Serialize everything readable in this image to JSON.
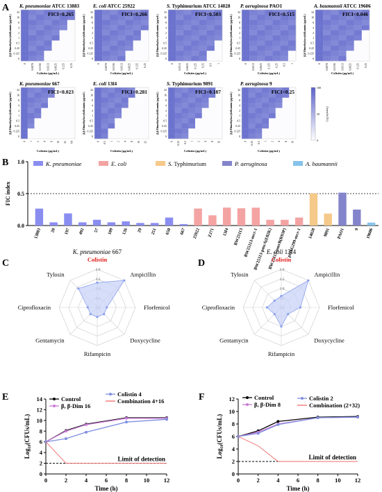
{
  "panel_letters": {
    "A": "A",
    "B": "B",
    "C": "C",
    "D": "D",
    "E": "E",
    "F": "F"
  },
  "colors": {
    "heat_high": "#5b63c9",
    "heat_low": "#ffffff",
    "kp": "#8a8df0",
    "ec": "#f4a3a3",
    "st": "#f5c98a",
    "pa": "#8484cc",
    "ab": "#86c3ea",
    "radar_fill": "#c9d3f7",
    "radar_line": "#8aa0ee",
    "control": "#000000",
    "bbdim": "#c97ad6",
    "colistin": "#7f8fe0",
    "combo": "#f06a6a",
    "colistin_label": "#e01b1b"
  },
  "chart_data": [
    {
      "type": "heatmap",
      "panel": "A",
      "grid": "row1",
      "heatmaps": [
        {
          "name_italic": "K. pneumoniae",
          "name_rest": " ATCC 13883",
          "fici": "FICI<0.265",
          "xticks": [
            "0",
            "0.0078",
            "0.0156",
            "0.0313",
            "0.0625",
            "0.125",
            "0.25"
          ],
          "yticks": [
            "0",
            "0.125",
            "0.25",
            "0.5",
            "1",
            "2",
            "4",
            "8",
            "16",
            "32"
          ],
          "xlabel": "Colistin (μg/mL)",
          "ylabel": "β,β-Dimethylacrylalkannin (μg/mL)",
          "mic_col": 3
        },
        {
          "name_italic": "E. coli",
          "name_rest": " ATCC 25922",
          "fici": "FICI<0.266",
          "xticks": [
            "0",
            "0.0078",
            "0.0156",
            "0.0313",
            "0.0625",
            "0.125",
            "0.25"
          ],
          "yticks": [
            "0",
            "0.125",
            "0.25",
            "0.5",
            "1",
            "2",
            "4",
            "8",
            "16",
            "32"
          ],
          "xlabel": "Colistin (μg/mL)",
          "ylabel": "β,β-Dimethylacrylalkannin (μg/mL)",
          "mic_col": 4
        },
        {
          "name_italic": "S.",
          "name_rest": " Typhimurium ATCC 14028",
          "fici": "FICI<0.503",
          "xticks": [
            "0",
            "0.0313",
            "0.0625",
            "0.125",
            "0.25",
            "0.5",
            "1"
          ],
          "yticks": [
            "0",
            "0.125",
            "0.25",
            "0.5",
            "1",
            "2",
            "4",
            "8",
            "16",
            "32"
          ],
          "xlabel": "Colistin (μg/mL)",
          "ylabel": "β,β-Dimethylacrylalkannin (μg/mL)",
          "mic_col": 5
        },
        {
          "name_italic": "P. aeruginosa",
          "name_rest": " PAO1",
          "fici": "FICI<0.515",
          "xticks": [
            "0",
            "0.0313",
            "0.0625",
            "0.125",
            "0.25",
            "0.5",
            "1"
          ],
          "yticks": [
            "0",
            "0.125",
            "0.25",
            "0.5",
            "1",
            "2",
            "4",
            "8",
            "16",
            "32"
          ],
          "xlabel": "Colistin (μg/mL)",
          "ylabel": "β,β-Dimethylacrylalkannin (μg/mL)",
          "mic_col": 6
        },
        {
          "name_italic": "A. baumannii",
          "name_rest": " ATCC 19606",
          "fici": "FICI<0.046",
          "xticks": [
            "0",
            "0.0078",
            "0.0156",
            "0.0313",
            "0.0625",
            "0.125",
            "0.25"
          ],
          "yticks": [
            "0",
            "0.125",
            "0.25",
            "0.5",
            "1",
            "2",
            "4",
            "8",
            "16",
            "32"
          ],
          "xlabel": "Colistin (μg/mL)",
          "ylabel": "β,β-Dimethylacrylalkannin (μg/mL)",
          "mic_col": 4
        }
      ]
    },
    {
      "type": "heatmap",
      "panel": "A",
      "grid": "row2",
      "heatmaps": [
        {
          "name_italic": "K. pneumoniae",
          "name_rest": " 667",
          "fici": "FICI<0.023",
          "xticks": [
            "0",
            "1",
            "2",
            "4",
            "8",
            "16",
            "32",
            "64"
          ],
          "yticks": [
            "0",
            "0.125",
            "0.25",
            "0.5",
            "1",
            "2",
            "4",
            "8",
            "16",
            "32"
          ],
          "xlabel": "Colistin (μg/mL)",
          "ylabel": "β,β-Dimethylacrylalkannin (μg/mL)",
          "mic_col": 1
        },
        {
          "name_italic": "E. coli",
          "name_rest": " 13f4",
          "fici": "FICI<0.281",
          "xticks": [
            "0",
            "0.5",
            "1",
            "2",
            "4",
            "8",
            "16",
            "32"
          ],
          "yticks": [
            "0",
            "0.125",
            "0.25",
            "0.5",
            "1",
            "2",
            "4",
            "8",
            "16",
            "32"
          ],
          "xlabel": "Colistin (μg/mL)",
          "ylabel": "β,β-Dimethylacrylalkannin (μg/mL)",
          "mic_col": 2
        },
        {
          "name_italic": "S.",
          "name_rest": " Typhimurium 9891",
          "fici": "FICI<0.187",
          "xticks": [
            "0",
            "0.25",
            "0.5",
            "1",
            "2",
            "4",
            "8",
            "16"
          ],
          "yticks": [
            "0",
            "0.125",
            "0.25",
            "0.5",
            "1",
            "2",
            "4",
            "8",
            "16",
            "32"
          ],
          "xlabel": "Colistin (μg/mL)",
          "ylabel": "β,β-Dimethylacrylalkannin (μg/mL)",
          "mic_col": 3
        },
        {
          "name_italic": "P. aeruginosa",
          "name_rest": " 9",
          "fici": "FICI<0.25",
          "xticks": [
            "0",
            "0.25",
            "0.5",
            "1",
            "2",
            "4",
            "8",
            "16"
          ],
          "yticks": [
            "0",
            "0.125",
            "0.25",
            "0.5",
            "1",
            "2",
            "4",
            "8",
            "16",
            "32"
          ],
          "xlabel": "Colistin (μg/mL)",
          "ylabel": "β,β-Dimethylacrylalkannin (μg/mL)",
          "mic_col": 3
        }
      ],
      "colorbar": {
        "ticks": [
          "100",
          "50",
          "0"
        ],
        "label": "Growth (%)"
      }
    },
    {
      "type": "bar",
      "panel": "B",
      "ylabel": "FIC index",
      "ylim": [
        0,
        1.0
      ],
      "yticks": [
        "0.0",
        "0.5",
        "1.0"
      ],
      "threshold": 0.5,
      "legend": [
        {
          "label": "K. pneumoniae",
          "group": "kp",
          "italic": true
        },
        {
          "label": "E. coli",
          "group": "ec",
          "italic": true
        },
        {
          "label": "S. Typhimurium",
          "group": "st",
          "italic_prefix": "S."
        },
        {
          "label": "P. aeruginosa",
          "group": "pa",
          "italic": true
        },
        {
          "label": "A. baumannii",
          "group": "ab",
          "italic": true
        }
      ],
      "categories": [
        "13883",
        "20",
        "197",
        "492",
        "57",
        "109",
        "126",
        "29",
        "251",
        "650",
        "667",
        "25922",
        "ZJ71",
        "13f4",
        "BW25113",
        "BW25113-mcr-1",
        "BW25113-pmrA(E82K)",
        "BW25113-pmrB(R93P)",
        "pHSG299-mcr-1",
        "14028",
        "9891",
        "PAO1",
        "9",
        "19606"
      ],
      "groups": [
        "kp",
        "kp",
        "kp",
        "kp",
        "kp",
        "kp",
        "kp",
        "kp",
        "kp",
        "kp",
        "kp",
        "ec",
        "ec",
        "ec",
        "ec",
        "ec",
        "ec",
        "ec",
        "ec",
        "st",
        "st",
        "pa",
        "pa",
        "ab"
      ],
      "values": [
        0.265,
        0.05,
        0.19,
        0.05,
        0.09,
        0.05,
        0.065,
        0.04,
        0.04,
        0.125,
        0.023,
        0.266,
        0.16,
        0.281,
        0.27,
        0.28,
        0.09,
        0.09,
        0.125,
        0.503,
        0.187,
        0.515,
        0.25,
        0.046
      ]
    },
    {
      "type": "radar",
      "panel": "C",
      "title_italic": "K. pneumoniae",
      "title_rest": " 667",
      "axes": [
        "Colistin",
        "Ampicillin",
        "Florfenicol",
        "Doxycycline",
        "Rifampicin",
        "Gentamycin",
        "Ciprofloxacin",
        "Tylosin"
      ],
      "rings": [
        "0.0",
        "0.5",
        "1.0",
        "1.5",
        "2.0"
      ],
      "max": 2.0,
      "values": [
        1.3,
        2.0,
        0.5,
        0.5,
        0.5,
        0.5,
        0.5,
        1.4
      ]
    },
    {
      "type": "radar",
      "panel": "D",
      "title_italic": "E. coli",
      "title_rest": " 13f4",
      "axes": [
        "Colistin",
        "Ampicillin",
        "Florfenicol",
        "Doxycycline",
        "Rifampicin",
        "Gentamycin",
        "Ciprofloxacin",
        "Tylosin"
      ],
      "rings": [
        "0.0",
        "0.5",
        "1.0",
        "1.5",
        "2.0"
      ],
      "max": 2.0,
      "values": [
        0.6,
        2.0,
        1.0,
        0.5,
        1.0,
        0.5,
        0.75,
        0.5
      ]
    },
    {
      "type": "line",
      "panel": "E",
      "xlabel": "Time (h)",
      "ylabel": "Log₁₀(CFUs/mL)",
      "xlim": [
        0,
        12
      ],
      "ylim": [
        0,
        14
      ],
      "xticks": [
        "0",
        "2",
        "4",
        "6",
        "8",
        "10",
        "12"
      ],
      "yticks": [
        "0",
        "2",
        "4",
        "6",
        "8",
        "10",
        "12",
        "14"
      ],
      "lod": 2,
      "lod_label": "Limit of detection",
      "x": [
        0,
        2,
        4,
        8,
        12
      ],
      "series": [
        {
          "name": "Control",
          "color_key": "control",
          "values": [
            6,
            8.1,
            9.3,
            10.5,
            10.5
          ]
        },
        {
          "name": "β, β-Dim 16",
          "color_key": "bbdim",
          "values": [
            6,
            8,
            9.2,
            10.4,
            10.4
          ]
        },
        {
          "name": "Colistin 4",
          "color_key": "colistin",
          "values": [
            6,
            6.6,
            7.8,
            9.7,
            10.2
          ]
        },
        {
          "name": "Combination 4+16",
          "color_key": "combo",
          "values": [
            6,
            2,
            2,
            2,
            2
          ]
        }
      ]
    },
    {
      "type": "line",
      "panel": "F",
      "xlabel": "Time (h)",
      "ylabel": "Log₁₀(CFUs/mL)",
      "xlim": [
        0,
        12
      ],
      "ylim": [
        0,
        12
      ],
      "xticks": [
        "0",
        "2",
        "4",
        "6",
        "8",
        "10",
        "12"
      ],
      "yticks": [
        "0",
        "2",
        "4",
        "6",
        "8",
        "10",
        "12"
      ],
      "lod": 2,
      "lod_label": "Limit of detection",
      "x": [
        0,
        2,
        4,
        8,
        12
      ],
      "series": [
        {
          "name": "Control",
          "color_key": "control",
          "values": [
            6,
            6.9,
            8.4,
            9.1,
            9.2
          ]
        },
        {
          "name": "β, β-Dim 8",
          "color_key": "bbdim",
          "values": [
            6,
            6.7,
            8,
            9,
            9.1
          ]
        },
        {
          "name": "Colistin 2",
          "color_key": "colistin",
          "values": [
            6,
            6.5,
            7.9,
            9,
            9.1
          ]
        },
        {
          "name": "Combination (2+32)",
          "color_key": "combo",
          "values": [
            6,
            4.5,
            2,
            2,
            2
          ]
        }
      ]
    }
  ]
}
